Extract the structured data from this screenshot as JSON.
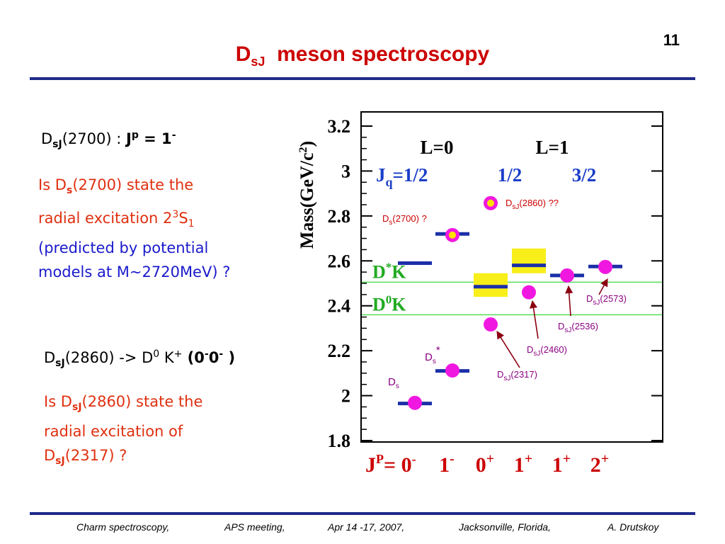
{
  "slide": {
    "number": "11",
    "title_main": "D",
    "title_sub": "sJ",
    "title_rest": "meson spectroscopy",
    "colors": {
      "title": "#cc0000",
      "rule": "#1f2a8a",
      "red_text": "#e03010",
      "blue_text": "#1a1acc"
    }
  },
  "left_text": {
    "line1": {
      "D": "D",
      "sub": "sJ",
      "rest": "(2700) : ",
      "J": "J",
      "Jsup": "p",
      "eq": " = 1",
      "minus": "-"
    },
    "question1": {
      "l1a": "Is D",
      "l1sub": "s",
      "l1b": "(2700) state the",
      "l2a": "radial excitation 2",
      "l2sup": "3",
      "l2b": "S",
      "l2sub": "1",
      "l3": "(predicted by potential",
      "l4": "models at  M~2720MeV) ?"
    },
    "line2": {
      "D": "D",
      "sub": "sJ",
      "rest": "(2860) -> D",
      "zero": "0",
      "K": " K",
      "plus": "+",
      "open": " (",
      "z1": "0",
      "m1": "-",
      "z2": "0",
      "m2": "-",
      "close": " )"
    },
    "question2": {
      "l1a": "Is D",
      "l1sub": "sJ",
      "l1b": "(2860) state the",
      "l2": "radial excitation of",
      "l3a": "D",
      "l3sub": "sJ",
      "l3b": "(2317) ?"
    }
  },
  "footer": {
    "items": [
      "Charm spectroscopy,",
      "APS meeting,",
      "Apr 14 -17, 2007,",
      "Jacksonville, Florida,",
      "A. Drutskoy"
    ]
  },
  "chart_data": {
    "type": "scatter",
    "ylabel": "Mass(GeV/c",
    "ylabel_sup": "2",
    "ylabel_close": ")",
    "ylim": [
      1.8,
      3.2
    ],
    "y_ticks": [
      1.8,
      2,
      2.2,
      2.4,
      2.6,
      2.8,
      3,
      3.2
    ],
    "y_tick_labels": [
      "1.8",
      "2",
      "2.2",
      "2.4",
      "2.6",
      "2.8",
      "3",
      "3.2"
    ],
    "x_prefix": "J",
    "x_prefix_sup": "P",
    "x_prefix_eq": "= 0",
    "x_prefix_eq_sup": "-",
    "x_categories": [
      {
        "base": "1",
        "sup": "-"
      },
      {
        "base": "0",
        "sup": "+"
      },
      {
        "base": "1",
        "sup": "+"
      },
      {
        "base": "1",
        "sup": "+"
      },
      {
        "base": "2",
        "sup": "+"
      }
    ],
    "headers": {
      "L0": "L=0",
      "L1": "L=1",
      "jq_a": "J",
      "jq_sub": "q",
      "jq_b": "=1/2",
      "jq2": "1/2",
      "jq3": "3/2"
    },
    "thresholds": [
      {
        "label_a": "D",
        "label_sup": "*",
        "label_b": "K",
        "mass": 2.505
      },
      {
        "label_a": "D",
        "label_sup": "0",
        "label_b": "K",
        "mass": 2.36
      }
    ],
    "predictions": [
      {
        "jp_index": 0,
        "mass": 1.965,
        "band": null
      },
      {
        "jp_index": 1,
        "mass": 2.11,
        "band": null
      },
      {
        "jp_index": 0,
        "mass": 2.59,
        "band": null
      },
      {
        "jp_index": 1,
        "mass": 2.72,
        "band": null
      },
      {
        "jp_index": 2,
        "mass": 2.485,
        "band": [
          2.44,
          2.545
        ]
      },
      {
        "jp_index": 3,
        "mass": 2.58,
        "band": [
          2.545,
          2.655
        ]
      },
      {
        "jp_index": 4,
        "mass": 2.535,
        "band": null
      },
      {
        "jp_index": 5,
        "mass": 2.575,
        "band": null
      }
    ],
    "observed": [
      {
        "jp_index": 0,
        "mass": 1.968,
        "label_a": "D",
        "label_sub": "s",
        "label_b": "",
        "label_sup": ""
      },
      {
        "jp_index": 1,
        "mass": 2.112,
        "label_a": "D",
        "label_sub": "s",
        "label_b": "",
        "label_sup": "*"
      },
      {
        "jp_index": 2,
        "mass": 2.317,
        "label_a": "D",
        "label_sub": "sJ",
        "label_b": "(2317)",
        "label_sup": ""
      },
      {
        "jp_index": 3,
        "mass": 2.46,
        "label_a": "D",
        "label_sub": "sJ",
        "label_b": "(2460)",
        "label_sup": ""
      },
      {
        "jp_index": 4,
        "mass": 2.535,
        "label_a": "D",
        "label_sub": "sJ",
        "label_b": "(2536)",
        "label_sup": ""
      },
      {
        "jp_index": 5,
        "mass": 2.573,
        "label_a": "D",
        "label_sub": "sJ",
        "label_b": "(2573)",
        "label_sup": ""
      },
      {
        "jp_index": 1,
        "mass": 2.715,
        "label_a": "D",
        "label_sub": "s",
        "label_b": "(2700) ?",
        "label_sup": "",
        "ring": true
      },
      {
        "jp_index": 2,
        "mass": 2.857,
        "label_a": "D",
        "label_sub": "sJ",
        "label_b": "(2860) ??",
        "label_sup": "",
        "ring": true
      }
    ],
    "colors": {
      "level": "#1b2fa8",
      "band": "#f8ef1a",
      "marker": "#f018e0",
      "ring_inner": "#ffe000",
      "threshold": "#55dd55",
      "threshold_text": "#22aa22",
      "arrow": "#8b0010",
      "observed_label": "#8a0080",
      "header_blue": "#1a3ec8",
      "jp_red": "#cc0000"
    }
  }
}
